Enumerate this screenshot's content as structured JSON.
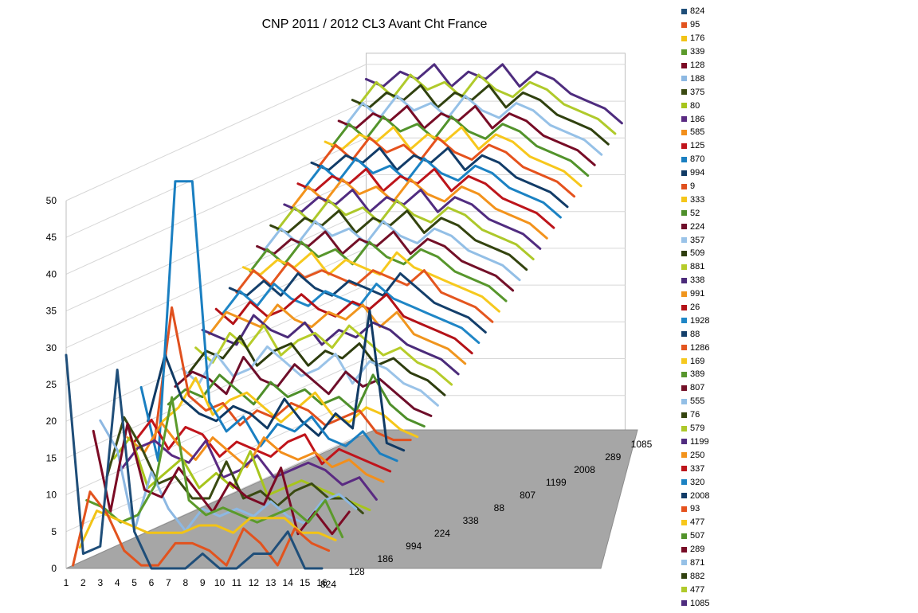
{
  "chart_data": {
    "type": "line",
    "title": "CNP  2011  / 2012  CL3 Avant  Cht France",
    "xlabel": "",
    "ylabel": "",
    "ylim": [
      0,
      50
    ],
    "y_ticks": [
      "0",
      "5",
      "10",
      "15",
      "20",
      "25",
      "30",
      "35",
      "40",
      "45",
      "50"
    ],
    "x": [
      "1",
      "2",
      "3",
      "4",
      "5",
      "6",
      "7",
      "8",
      "9",
      "10",
      "11",
      "12",
      "13",
      "14",
      "15",
      "16"
    ],
    "depth_tick_labels": [
      "824",
      "128",
      "186",
      "994",
      "224",
      "338",
      "88",
      "807",
      "1199",
      "2008",
      "289",
      "1085"
    ],
    "grid": true,
    "legend_position": "right",
    "series": [
      {
        "name": "824",
        "color": "#1f4e79",
        "values": [
          29,
          2,
          3,
          27,
          5,
          0,
          0,
          0,
          2,
          0,
          0,
          2,
          2,
          5,
          0,
          0
        ]
      },
      {
        "name": "95",
        "color": "#e2531e",
        "values": [
          0,
          10,
          7,
          2,
          0,
          0,
          3,
          3,
          2,
          0,
          5,
          3,
          0,
          5,
          3,
          2
        ]
      },
      {
        "name": "176",
        "color": "#f2c316",
        "values": [
          2,
          7,
          6,
          5,
          4,
          4,
          4,
          5,
          5,
          4,
          6,
          6,
          6,
          4,
          4,
          3
        ]
      },
      {
        "name": "339",
        "color": "#5b9a2b",
        "values": [
          8,
          7,
          5,
          6,
          10,
          22,
          8,
          6,
          7,
          6,
          5,
          6,
          7,
          5,
          8,
          3
        ]
      },
      {
        "name": "128",
        "color": "#7b0a24",
        "values": [
          17,
          6,
          18,
          9,
          8,
          12,
          9,
          6,
          10,
          8,
          7,
          12,
          3,
          6,
          3,
          6
        ]
      },
      {
        "name": "188",
        "color": "#8db8e2",
        "values": [
          18,
          14,
          3,
          11,
          6,
          3,
          6,
          5,
          6,
          5,
          7,
          5,
          4,
          7,
          8,
          6
        ]
      },
      {
        "name": "375",
        "color": "#3a4a12",
        "values": [
          10,
          18,
          14,
          9,
          10,
          7,
          7,
          12,
          7,
          8,
          6,
          8,
          9,
          7,
          7,
          5
        ]
      },
      {
        "name": "80",
        "color": "#a7c51c",
        "values": [
          12,
          15,
          8,
          10,
          12,
          8,
          10,
          8,
          13,
          7,
          8,
          9,
          8,
          7,
          6,
          5
        ]
      },
      {
        "name": "186",
        "color": "#5a2a82",
        "values": [
          10,
          13,
          14,
          12,
          11,
          14,
          9,
          10,
          12,
          9,
          10,
          11,
          10,
          8,
          9,
          6
        ]
      },
      {
        "name": "585",
        "color": "#f28f1c",
        "values": [
          14,
          12,
          16,
          13,
          11,
          14,
          12,
          10,
          14,
          12,
          11,
          12,
          10,
          11,
          9,
          8
        ]
      },
      {
        "name": "125",
        "color": "#c0141b",
        "values": [
          13,
          16,
          12,
          15,
          14,
          11,
          13,
          12,
          11,
          13,
          14,
          10,
          12,
          11,
          10,
          9
        ]
      },
      {
        "name": "870",
        "color": "#1a7fc1",
        "values": [
          20,
          10,
          48,
          48,
          18,
          14,
          16,
          12,
          15,
          14,
          16,
          13,
          12,
          14,
          11,
          10
        ]
      },
      {
        "name": "994",
        "color": "#103a64",
        "values": [
          15,
          24,
          18,
          16,
          15,
          17,
          16,
          14,
          18,
          15,
          13,
          16,
          14,
          30,
          12,
          11
        ]
      },
      {
        "name": "9",
        "color": "#e0501e",
        "values": [
          12,
          30,
          18,
          16,
          17,
          14,
          16,
          15,
          17,
          16,
          14,
          15,
          16,
          13,
          12,
          12
        ]
      },
      {
        "name": "333",
        "color": "#f5c61a",
        "values": [
          14,
          16,
          20,
          15,
          17,
          18,
          16,
          14,
          16,
          18,
          15,
          14,
          16,
          15,
          13,
          12
        ]
      },
      {
        "name": "52",
        "color": "#4e8f2a",
        "values": [
          16,
          18,
          17,
          20,
          18,
          16,
          19,
          17,
          18,
          16,
          17,
          15,
          20,
          16,
          14,
          13
        ]
      },
      {
        "name": "224",
        "color": "#6e0e2a",
        "values": [
          18,
          20,
          19,
          17,
          22,
          19,
          18,
          21,
          19,
          17,
          20,
          18,
          19,
          17,
          15,
          14
        ]
      },
      {
        "name": "357",
        "color": "#9ac3e8",
        "values": [
          20,
          18,
          22,
          19,
          20,
          23,
          21,
          19,
          20,
          22,
          18,
          21,
          20,
          18,
          17,
          15
        ]
      },
      {
        "name": "509",
        "color": "#2e3d0e",
        "values": [
          19,
          22,
          21,
          24,
          20,
          22,
          23,
          20,
          22,
          21,
          23,
          20,
          21,
          19,
          18,
          16
        ]
      },
      {
        "name": "881",
        "color": "#b6cc2a",
        "values": [
          22,
          20,
          24,
          22,
          25,
          21,
          23,
          24,
          22,
          25,
          23,
          21,
          22,
          20,
          19,
          17
        ]
      },
      {
        "name": "338",
        "color": "#4b2b7a",
        "values": [
          24,
          23,
          22,
          26,
          24,
          23,
          25,
          22,
          24,
          23,
          25,
          24,
          22,
          21,
          20,
          18
        ]
      },
      {
        "name": "991",
        "color": "#f0951e",
        "values": [
          23,
          26,
          25,
          24,
          27,
          25,
          24,
          26,
          25,
          27,
          24,
          26,
          23,
          22,
          21,
          19
        ]
      },
      {
        "name": "26",
        "color": "#b41218",
        "values": [
          26,
          24,
          27,
          25,
          26,
          28,
          26,
          25,
          27,
          26,
          28,
          25,
          24,
          23,
          22,
          20
        ]
      },
      {
        "name": "1928",
        "color": "#1f86c6",
        "values": [
          25,
          28,
          26,
          29,
          27,
          26,
          28,
          27,
          26,
          29,
          27,
          26,
          25,
          24,
          23,
          21
        ]
      },
      {
        "name": "88",
        "color": "#143f6b",
        "values": [
          28,
          27,
          29,
          27,
          30,
          28,
          27,
          29,
          28,
          27,
          30,
          28,
          26,
          25,
          24,
          22
        ]
      },
      {
        "name": "1286",
        "color": "#e4561f",
        "values": [
          27,
          30,
          28,
          31,
          29,
          30,
          29,
          28,
          30,
          29,
          28,
          30,
          27,
          26,
          25,
          23
        ]
      },
      {
        "name": "169",
        "color": "#f6c91e",
        "values": [
          30,
          29,
          31,
          30,
          32,
          29,
          31,
          30,
          29,
          32,
          30,
          29,
          28,
          27,
          26,
          24
        ]
      },
      {
        "name": "389",
        "color": "#57962c",
        "values": [
          29,
          32,
          30,
          33,
          31,
          32,
          30,
          33,
          31,
          30,
          32,
          31,
          29,
          28,
          27,
          25
        ]
      },
      {
        "name": "807",
        "color": "#731028",
        "values": [
          32,
          31,
          33,
          32,
          34,
          31,
          33,
          32,
          34,
          31,
          33,
          32,
          30,
          29,
          28,
          26
        ]
      },
      {
        "name": "555",
        "color": "#93bfe6",
        "values": [
          31,
          34,
          32,
          35,
          33,
          34,
          32,
          35,
          33,
          32,
          34,
          33,
          31,
          30,
          29,
          27
        ]
      },
      {
        "name": "76",
        "color": "#34440f",
        "values": [
          34,
          33,
          35,
          34,
          36,
          33,
          35,
          34,
          36,
          33,
          35,
          34,
          32,
          31,
          30,
          28
        ]
      },
      {
        "name": "579",
        "color": "#adc82a",
        "values": [
          33,
          36,
          34,
          37,
          35,
          36,
          34,
          37,
          35,
          34,
          36,
          35,
          33,
          32,
          31,
          29
        ]
      },
      {
        "name": "1199",
        "color": "#512c80",
        "values": [
          36,
          35,
          37,
          36,
          38,
          35,
          37,
          36,
          38,
          35,
          37,
          36,
          34,
          33,
          32,
          30
        ]
      },
      {
        "name": "250",
        "color": "#f3931c",
        "values": [
          35,
          38,
          36,
          39,
          37,
          38,
          36,
          39,
          37,
          36,
          38,
          37,
          35,
          34,
          33,
          31
        ]
      },
      {
        "name": "337",
        "color": "#bd151b",
        "values": [
          38,
          37,
          39,
          38,
          40,
          37,
          39,
          38,
          40,
          37,
          39,
          38,
          36,
          35,
          34,
          32
        ]
      },
      {
        "name": "320",
        "color": "#1b82c3",
        "values": [
          37,
          40,
          38,
          41,
          39,
          40,
          38,
          41,
          39,
          38,
          40,
          39,
          37,
          36,
          35,
          33
        ]
      },
      {
        "name": "2008",
        "color": "#123c68",
        "values": [
          40,
          39,
          41,
          40,
          42,
          39,
          41,
          40,
          42,
          39,
          41,
          40,
          38,
          37,
          36,
          34
        ]
      },
      {
        "name": "93",
        "color": "#e5521d",
        "values": [
          39,
          42,
          40,
          43,
          41,
          42,
          40,
          43,
          41,
          40,
          42,
          41,
          39,
          38,
          37,
          35
        ]
      },
      {
        "name": "477",
        "color": "#f7c71c",
        "values": [
          42,
          41,
          43,
          42,
          44,
          41,
          43,
          42,
          44,
          41,
          43,
          42,
          40,
          39,
          38,
          36
        ]
      },
      {
        "name": "507",
        "color": "#52932b",
        "values": [
          41,
          44,
          42,
          45,
          43,
          44,
          42,
          45,
          43,
          42,
          44,
          43,
          41,
          40,
          39,
          37
        ]
      },
      {
        "name": "289",
        "color": "#770c26",
        "values": [
          44,
          43,
          45,
          44,
          46,
          43,
          45,
          44,
          46,
          43,
          45,
          44,
          42,
          41,
          40,
          38
        ]
      },
      {
        "name": "871",
        "color": "#96c1e7",
        "values": [
          43,
          46,
          44,
          47,
          45,
          46,
          44,
          47,
          45,
          44,
          46,
          45,
          43,
          42,
          41,
          39
        ]
      },
      {
        "name": "882",
        "color": "#30410f",
        "values": [
          46,
          45,
          47,
          46,
          48,
          45,
          47,
          46,
          48,
          45,
          47,
          46,
          44,
          43,
          42,
          40
        ]
      },
      {
        "name": "477",
        "color": "#b0ca2b",
        "values": [
          45,
          48,
          46,
          49,
          47,
          48,
          46,
          49,
          47,
          46,
          48,
          47,
          45,
          44,
          43,
          41
        ]
      },
      {
        "name": "1085",
        "color": "#4e2c7e",
        "values": [
          48,
          47,
          49,
          48,
          50,
          47,
          49,
          48,
          50,
          47,
          49,
          48,
          46,
          45,
          44,
          42
        ]
      }
    ]
  }
}
